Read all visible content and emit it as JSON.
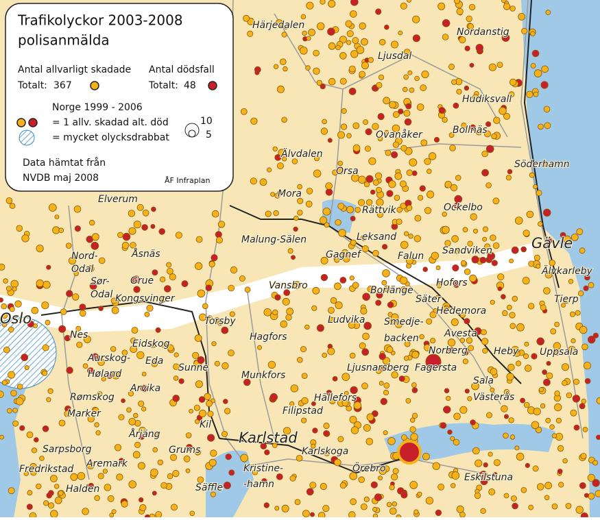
{
  "legend": {
    "title": [
      "Trafikolyckor 2003-2008",
      "polisanmälda"
    ],
    "injured": {
      "label": "Antal allvarligt skadade",
      "total_label": "Totalt:",
      "total": 367
    },
    "deaths": {
      "label": "Antal dödsfall",
      "total_label": "Totalt:",
      "total": 48
    },
    "norway": {
      "label": "Norge 1999 - 2006",
      "dot_text": "= 1 allv. skadad alt. död",
      "hatch_text": "= mycket olycksdrabbat",
      "size_large": 10,
      "size_small": 5
    },
    "source": [
      "Data hämtat från",
      "NVDB maj 2008"
    ],
    "credit": "ÅF Infraplan"
  },
  "places": [
    "Härjedalen",
    "Nordanstig",
    "Ljusdal",
    "Hudiksvall",
    "Bollnäs",
    "Ovanåker",
    "Söderhamn",
    "Älvdalen",
    "Orsa",
    "Mora",
    "Rättvik",
    "Ockelbo",
    "Elverum",
    "Malung-Sälen",
    "Leksand",
    "Gävle",
    "Sandviken",
    "Gagnef",
    "Falun",
    "Åsnäs",
    "Nord-",
    "Odal",
    "Sør-",
    "Odal",
    "Grue",
    "Vansbro",
    "Hofors",
    "Älvkarleby",
    "Borlänge",
    "Säter",
    "Tierp",
    "Kongsvinger",
    "Hedemora",
    "Oslo",
    "Ludvika",
    "Smedje-",
    "backen",
    "Avesta",
    "Torsby",
    "Nes",
    "Hagfors",
    "Eidskog",
    "Norberg",
    "Heby",
    "Uppsala",
    "Aurskog-",
    "Høland",
    "Eda",
    "Sunne",
    "Munkfors",
    "Ljusnarsberg",
    "Fagersta",
    "Sala",
    "Arvika",
    "Hällefors",
    "Rømskog",
    "Västerås",
    "Marker",
    "Filipstad",
    "Kil",
    "Årjäng",
    "Karlstad",
    "Sarpsborg",
    "Karlskoga",
    "Grums",
    "Aremark",
    "Fredrikstad",
    "Kristine-",
    "-hamn",
    "Örebro",
    "Eskilstuna",
    "Halden",
    "Säffle"
  ]
}
